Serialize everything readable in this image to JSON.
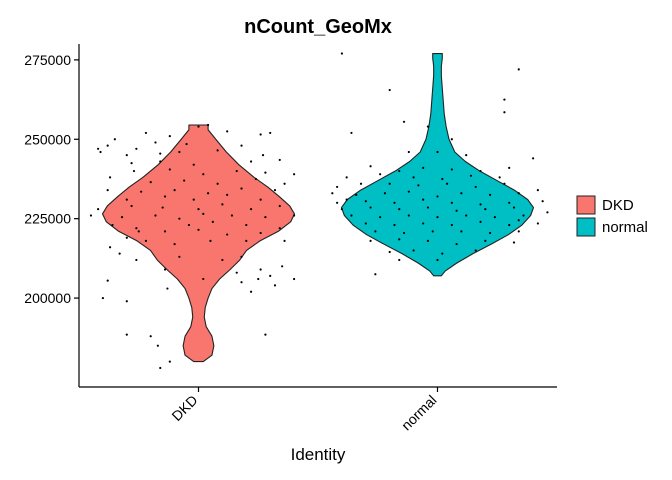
{
  "chart_data": {
    "type": "violin",
    "title": "nCount_GeoMx",
    "xlabel": "Identity",
    "ylabel": "",
    "categories": [
      "DKD",
      "normal"
    ],
    "ylim": [
      172000,
      280000
    ],
    "yticks": [
      200000,
      225000,
      250000,
      275000
    ],
    "ytick_labels": [
      "200000",
      "225000",
      "250000",
      "275000"
    ],
    "grid": false,
    "legend": {
      "position": "right",
      "entries": [
        "DKD",
        "normal"
      ]
    },
    "series": [
      {
        "name": "DKD",
        "color": "#F8766D",
        "range": [
          180000,
          254500
        ],
        "profile": [
          [
            180000,
            0.05
          ],
          [
            182000,
            0.14
          ],
          [
            185000,
            0.16
          ],
          [
            188000,
            0.14
          ],
          [
            191000,
            0.08
          ],
          [
            194000,
            0.06
          ],
          [
            197000,
            0.07
          ],
          [
            200000,
            0.1
          ],
          [
            203000,
            0.14
          ],
          [
            206000,
            0.22
          ],
          [
            209000,
            0.33
          ],
          [
            212000,
            0.43
          ],
          [
            215000,
            0.5
          ],
          [
            218000,
            0.64
          ],
          [
            221000,
            0.83
          ],
          [
            224000,
            0.96
          ],
          [
            226500,
            1.0
          ],
          [
            229000,
            0.95
          ],
          [
            232000,
            0.84
          ],
          [
            235000,
            0.72
          ],
          [
            238000,
            0.58
          ],
          [
            242000,
            0.42
          ],
          [
            246000,
            0.29
          ],
          [
            250000,
            0.18
          ],
          [
            253000,
            0.1
          ],
          [
            254500,
            0.1
          ]
        ],
        "points": [
          [
            0.7,
            188500
          ],
          [
            0.83,
            185000
          ],
          [
            0.84,
            178000
          ],
          [
            0.8,
            188000
          ],
          [
            0.88,
            180000
          ],
          [
            1.28,
            188500
          ],
          [
            0.87,
            203000
          ],
          [
            0.7,
            199000
          ],
          [
            0.6,
            200000
          ],
          [
            0.62,
            205500
          ],
          [
            1.18,
            205000
          ],
          [
            1.22,
            202000
          ],
          [
            1.3,
            207000
          ],
          [
            1.25,
            206000
          ],
          [
            1.32,
            204000
          ],
          [
            1.4,
            206000
          ],
          [
            1.02,
            206000
          ],
          [
            1.16,
            208000
          ],
          [
            0.74,
            212000
          ],
          [
            0.67,
            214000
          ],
          [
            0.92,
            213000
          ],
          [
            1.1,
            212000
          ],
          [
            1.18,
            213000
          ],
          [
            1.35,
            210000
          ],
          [
            1.26,
            209000
          ],
          [
            0.86,
            209000
          ],
          [
            0.63,
            216000
          ],
          [
            0.7,
            219000
          ],
          [
            0.78,
            218000
          ],
          [
            0.9,
            217000
          ],
          [
            1.05,
            218000
          ],
          [
            1.2,
            218000
          ],
          [
            1.36,
            218000
          ],
          [
            0.75,
            221000
          ],
          [
            0.86,
            221000
          ],
          [
            1.0,
            221500
          ],
          [
            1.12,
            220000
          ],
          [
            1.26,
            220500
          ],
          [
            0.64,
            223000
          ],
          [
            0.74,
            222000
          ],
          [
            0.96,
            223000
          ],
          [
            1.06,
            224000
          ],
          [
            1.2,
            223000
          ],
          [
            1.34,
            222000
          ],
          [
            0.55,
            226000
          ],
          [
            0.68,
            225500
          ],
          [
            0.82,
            226000
          ],
          [
            0.92,
            225000
          ],
          [
            1.02,
            226500
          ],
          [
            1.14,
            226000
          ],
          [
            1.28,
            225500
          ],
          [
            1.4,
            226000
          ],
          [
            0.58,
            228000
          ],
          [
            0.72,
            229000
          ],
          [
            0.85,
            228500
          ],
          [
            1.0,
            228000
          ],
          [
            1.1,
            229500
          ],
          [
            1.22,
            228000
          ],
          [
            1.34,
            229000
          ],
          [
            0.7,
            231000
          ],
          [
            0.86,
            232000
          ],
          [
            0.98,
            231000
          ],
          [
            1.12,
            232500
          ],
          [
            1.26,
            231000
          ],
          [
            0.62,
            234000
          ],
          [
            0.76,
            233500
          ],
          [
            0.9,
            234000
          ],
          [
            1.04,
            233000
          ],
          [
            1.18,
            234500
          ],
          [
            1.32,
            234000
          ],
          [
            0.8,
            236500
          ],
          [
            0.94,
            237000
          ],
          [
            1.08,
            236000
          ],
          [
            1.24,
            237500
          ],
          [
            1.36,
            236000
          ],
          [
            0.63,
            238000
          ],
          [
            0.73,
            240000
          ],
          [
            0.88,
            240500
          ],
          [
            1.02,
            239000
          ],
          [
            1.16,
            240000
          ],
          [
            1.28,
            239500
          ],
          [
            1.4,
            239000
          ],
          [
            0.72,
            242500
          ],
          [
            0.84,
            243000
          ],
          [
            0.98,
            242000
          ],
          [
            1.22,
            243000
          ],
          [
            1.34,
            243500
          ],
          [
            0.59,
            246000
          ],
          [
            0.7,
            245000
          ],
          [
            0.84,
            245500
          ],
          [
            0.92,
            246000
          ],
          [
            1.08,
            246500
          ],
          [
            1.27,
            245000
          ],
          [
            0.58,
            247000
          ],
          [
            0.62,
            248000
          ],
          [
            0.74,
            247000
          ],
          [
            0.82,
            249000
          ],
          [
            0.95,
            248500
          ],
          [
            1.18,
            248000
          ],
          [
            0.65,
            250000
          ],
          [
            0.78,
            252000
          ],
          [
            0.88,
            251000
          ],
          [
            1.12,
            252500
          ],
          [
            1.3,
            252000
          ],
          [
            1.0,
            254000
          ],
          [
            1.04,
            254500
          ],
          [
            1.26,
            251500
          ]
        ]
      },
      {
        "name": "normal",
        "color": "#00BFC4",
        "range": [
          207000,
          277000
        ],
        "profile": [
          [
            207000,
            0.04
          ],
          [
            208500,
            0.08
          ],
          [
            211000,
            0.2
          ],
          [
            214000,
            0.37
          ],
          [
            217000,
            0.56
          ],
          [
            220000,
            0.74
          ],
          [
            223000,
            0.88
          ],
          [
            226000,
            0.97
          ],
          [
            228500,
            1.0
          ],
          [
            231000,
            0.94
          ],
          [
            234000,
            0.8
          ],
          [
            237000,
            0.62
          ],
          [
            240000,
            0.44
          ],
          [
            243000,
            0.29
          ],
          [
            246000,
            0.18
          ],
          [
            250000,
            0.12
          ],
          [
            254000,
            0.09
          ],
          [
            258000,
            0.07
          ],
          [
            262000,
            0.06
          ],
          [
            266000,
            0.05
          ],
          [
            270000,
            0.04
          ],
          [
            273000,
            0.04
          ],
          [
            275500,
            0.05
          ],
          [
            277000,
            0.05
          ]
        ],
        "points": [
          [
            1.6,
            277000
          ],
          [
            2.34,
            272000
          ],
          [
            2.28,
            262500
          ],
          [
            1.8,
            265500
          ],
          [
            2.28,
            258500
          ],
          [
            1.86,
            255500
          ],
          [
            1.96,
            254000
          ],
          [
            2.06,
            250000
          ],
          [
            1.64,
            252000
          ],
          [
            1.88,
            246000
          ],
          [
            2.0,
            246000
          ],
          [
            2.12,
            245000
          ],
          [
            2.4,
            244000
          ],
          [
            1.72,
            241500
          ],
          [
            1.84,
            240000
          ],
          [
            1.94,
            241000
          ],
          [
            2.06,
            240500
          ],
          [
            2.18,
            240000
          ],
          [
            2.3,
            241000
          ],
          [
            1.62,
            238000
          ],
          [
            1.76,
            239000
          ],
          [
            1.9,
            238000
          ],
          [
            2.02,
            237500
          ],
          [
            2.14,
            238500
          ],
          [
            2.26,
            238000
          ],
          [
            1.58,
            235000
          ],
          [
            1.68,
            236000
          ],
          [
            1.8,
            236000
          ],
          [
            1.92,
            235500
          ],
          [
            2.04,
            236000
          ],
          [
            2.16,
            235000
          ],
          [
            2.28,
            236000
          ],
          [
            2.42,
            234000
          ],
          [
            1.56,
            233000
          ],
          [
            1.66,
            232500
          ],
          [
            1.78,
            233000
          ],
          [
            1.88,
            233500
          ],
          [
            2.0,
            232000
          ],
          [
            2.1,
            233000
          ],
          [
            2.22,
            232500
          ],
          [
            2.34,
            233000
          ],
          [
            1.58,
            230000
          ],
          [
            1.7,
            230500
          ],
          [
            1.82,
            230000
          ],
          [
            1.94,
            231000
          ],
          [
            2.06,
            230000
          ],
          [
            2.18,
            229500
          ],
          [
            2.3,
            230000
          ],
          [
            2.44,
            230500
          ],
          [
            1.6,
            228000
          ],
          [
            1.72,
            228500
          ],
          [
            1.84,
            228000
          ],
          [
            1.96,
            228500
          ],
          [
            2.08,
            227500
          ],
          [
            2.2,
            228000
          ],
          [
            2.32,
            228500
          ],
          [
            2.46,
            227000
          ],
          [
            1.64,
            226000
          ],
          [
            1.76,
            225500
          ],
          [
            1.88,
            226000
          ],
          [
            2.0,
            225500
          ],
          [
            2.12,
            226000
          ],
          [
            2.24,
            225500
          ],
          [
            2.36,
            226000
          ],
          [
            1.7,
            223500
          ],
          [
            1.82,
            223000
          ],
          [
            1.94,
            223500
          ],
          [
            2.06,
            223000
          ],
          [
            2.18,
            224000
          ],
          [
            2.3,
            223000
          ],
          [
            2.42,
            223500
          ],
          [
            1.74,
            221000
          ],
          [
            1.86,
            220500
          ],
          [
            1.98,
            221000
          ],
          [
            2.1,
            221000
          ],
          [
            2.22,
            220500
          ],
          [
            2.34,
            221000
          ],
          [
            1.72,
            218000
          ],
          [
            1.84,
            218500
          ],
          [
            1.96,
            218000
          ],
          [
            2.08,
            217000
          ],
          [
            2.2,
            218000
          ],
          [
            2.32,
            217500
          ],
          [
            1.8,
            214500
          ],
          [
            1.9,
            215000
          ],
          [
            2.02,
            214000
          ],
          [
            2.16,
            215000
          ],
          [
            1.84,
            212000
          ],
          [
            2.0,
            212000
          ],
          [
            1.74,
            207500
          ],
          [
            2.34,
            224500
          ],
          [
            1.62,
            231000
          ]
        ]
      }
    ]
  }
}
